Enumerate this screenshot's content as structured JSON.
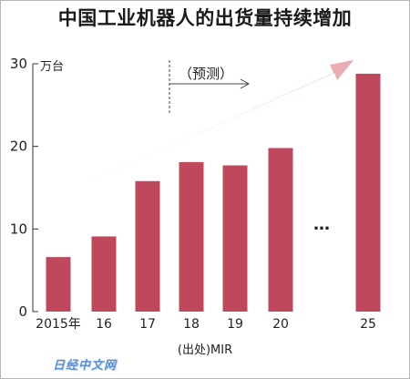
{
  "title": "中国工业机器人的出货量持续增加",
  "unit_label": "万台",
  "forecast_label": "（预测）",
  "source_label": "(出处)MIR",
  "ellipsis": "…",
  "watermark": "日经中文网",
  "colors": {
    "bar": "#c0485c",
    "arrow_light": "#f6dcdc",
    "arrow_dark": "#e8a8ae"
  },
  "chart_data": {
    "type": "bar",
    "title": "中国工业机器人的出货量持续增加",
    "ylabel": "万台",
    "xlabel": "",
    "ylim": [
      0,
      30
    ],
    "yticks": [
      0,
      10,
      20,
      30
    ],
    "categories": [
      "2015年",
      "16",
      "17",
      "18",
      "19",
      "20",
      "25"
    ],
    "values": [
      6.6,
      9.1,
      15.8,
      18.1,
      17.7,
      19.8,
      28.8
    ],
    "grid": false,
    "annotations": [
      "（预测）",
      "…"
    ]
  }
}
